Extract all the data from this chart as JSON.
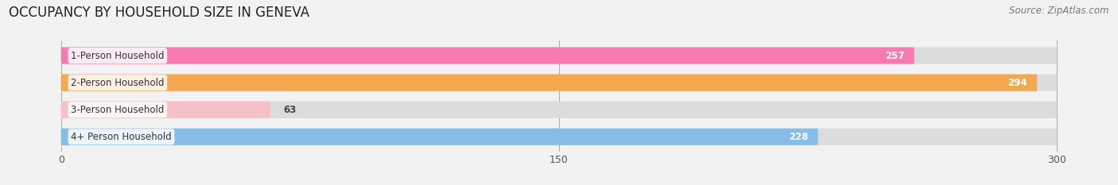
{
  "title": "OCCUPANCY BY HOUSEHOLD SIZE IN GENEVA",
  "source": "Source: ZipAtlas.com",
  "categories": [
    "1-Person Household",
    "2-Person Household",
    "3-Person Household",
    "4+ Person Household"
  ],
  "values": [
    257,
    294,
    63,
    228
  ],
  "bar_colors": [
    "#f87ab0",
    "#f5a94e",
    "#f5c0c8",
    "#85bce8"
  ],
  "value_labels": [
    "257",
    "294",
    "63",
    "228"
  ],
  "xlim": [
    -15,
    315
  ],
  "data_max": 300,
  "xticks": [
    0,
    150,
    300
  ],
  "xticklabels": [
    "0",
    "150",
    "300"
  ],
  "title_fontsize": 12,
  "source_fontsize": 8.5,
  "label_fontsize": 8.5,
  "tick_fontsize": 9,
  "bar_height": 0.62,
  "fig_width": 14.06,
  "fig_height": 2.33
}
